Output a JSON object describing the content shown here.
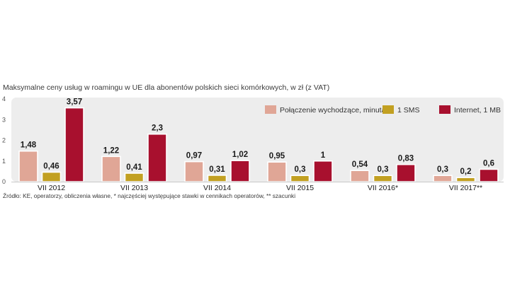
{
  "chart_data": {
    "type": "bar",
    "title": "Maksymalne ceny usług w roamingu w UE dla abonentów polskich sieci komórkowych, w zł (z VAT)",
    "source": "Źródło: KE, operatorzy, obliczenia własne, * najczęściej występujące stawki w cennikach operatorów, ** szacunki",
    "categories": [
      "VII 2012",
      "VII 2013",
      "VII 2014",
      "VII 2015",
      "VII 2016*",
      "VII 2017**"
    ],
    "series": [
      {
        "name": "Połączenie wychodzące, minuta",
        "color": "#e0a696",
        "values": [
          1.48,
          1.22,
          0.97,
          0.95,
          0.54,
          0.3
        ],
        "labels": [
          "1,48",
          "1,22",
          "0,97",
          "0,95",
          "0,54",
          "0,3"
        ]
      },
      {
        "name": "1 SMS",
        "color": "#c2a021",
        "values": [
          0.46,
          0.41,
          0.31,
          0.3,
          0.3,
          0.2
        ],
        "labels": [
          "0,46",
          "0,41",
          "0,31",
          "0,3",
          "0,3",
          "0,2"
        ]
      },
      {
        "name": "Internet, 1 MB",
        "color": "#a8102e",
        "values": [
          3.57,
          2.3,
          1.02,
          1,
          0.83,
          0.6
        ],
        "labels": [
          "3,57",
          "2,3",
          "1,02",
          "1",
          "0,83",
          "0,6"
        ]
      }
    ],
    "ylim": [
      0,
      4
    ],
    "yticks": [
      "0",
      "1",
      "2",
      "3",
      "4"
    ],
    "legend_position": "top-right",
    "xlabel": "",
    "ylabel": ""
  }
}
